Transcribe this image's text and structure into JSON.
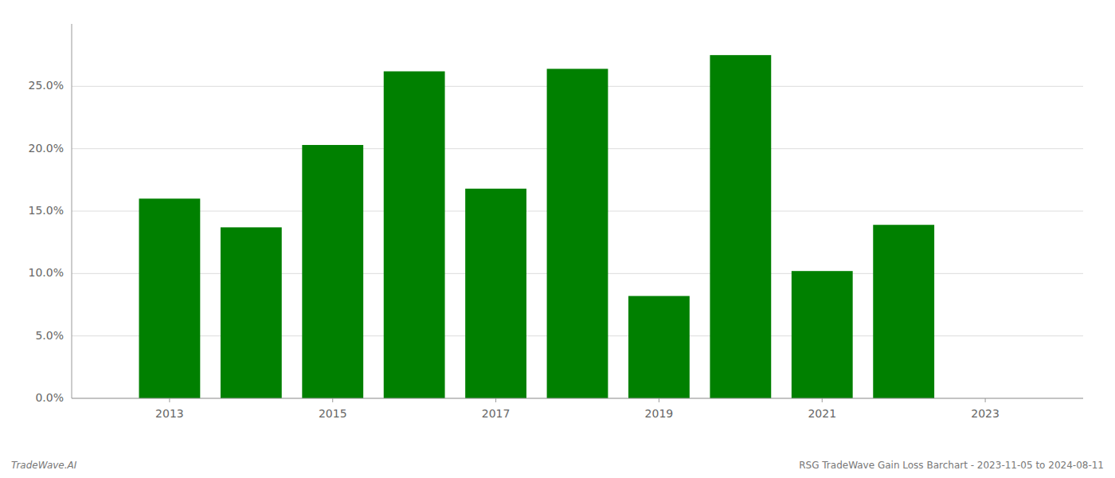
{
  "chart_data": {
    "type": "bar",
    "x": [
      2013,
      2014,
      2015,
      2016,
      2017,
      2018,
      2019,
      2020,
      2021,
      2022
    ],
    "values": [
      0.16,
      0.137,
      0.203,
      0.262,
      0.168,
      0.264,
      0.082,
      0.275,
      0.102,
      0.139
    ],
    "color": "#008000",
    "xlim": [
      2011.8,
      2024.2
    ],
    "xticks": [
      2013,
      2015,
      2017,
      2019,
      2021,
      2023
    ],
    "ylim": [
      0,
      0.3
    ],
    "yticks": [
      {
        "value": 0.0,
        "label": "0.0%"
      },
      {
        "value": 0.05,
        "label": "5.0%"
      },
      {
        "value": 0.1,
        "label": "10.0%"
      },
      {
        "value": 0.15,
        "label": "15.0%"
      },
      {
        "value": 0.2,
        "label": "20.0%"
      },
      {
        "value": 0.25,
        "label": "25.0%"
      }
    ],
    "grid": true,
    "annotations": [
      "TradeWave.AI",
      "RSG TradeWave Gain Loss Barchart - 2023-11-05 to 2024-08-11"
    ]
  }
}
